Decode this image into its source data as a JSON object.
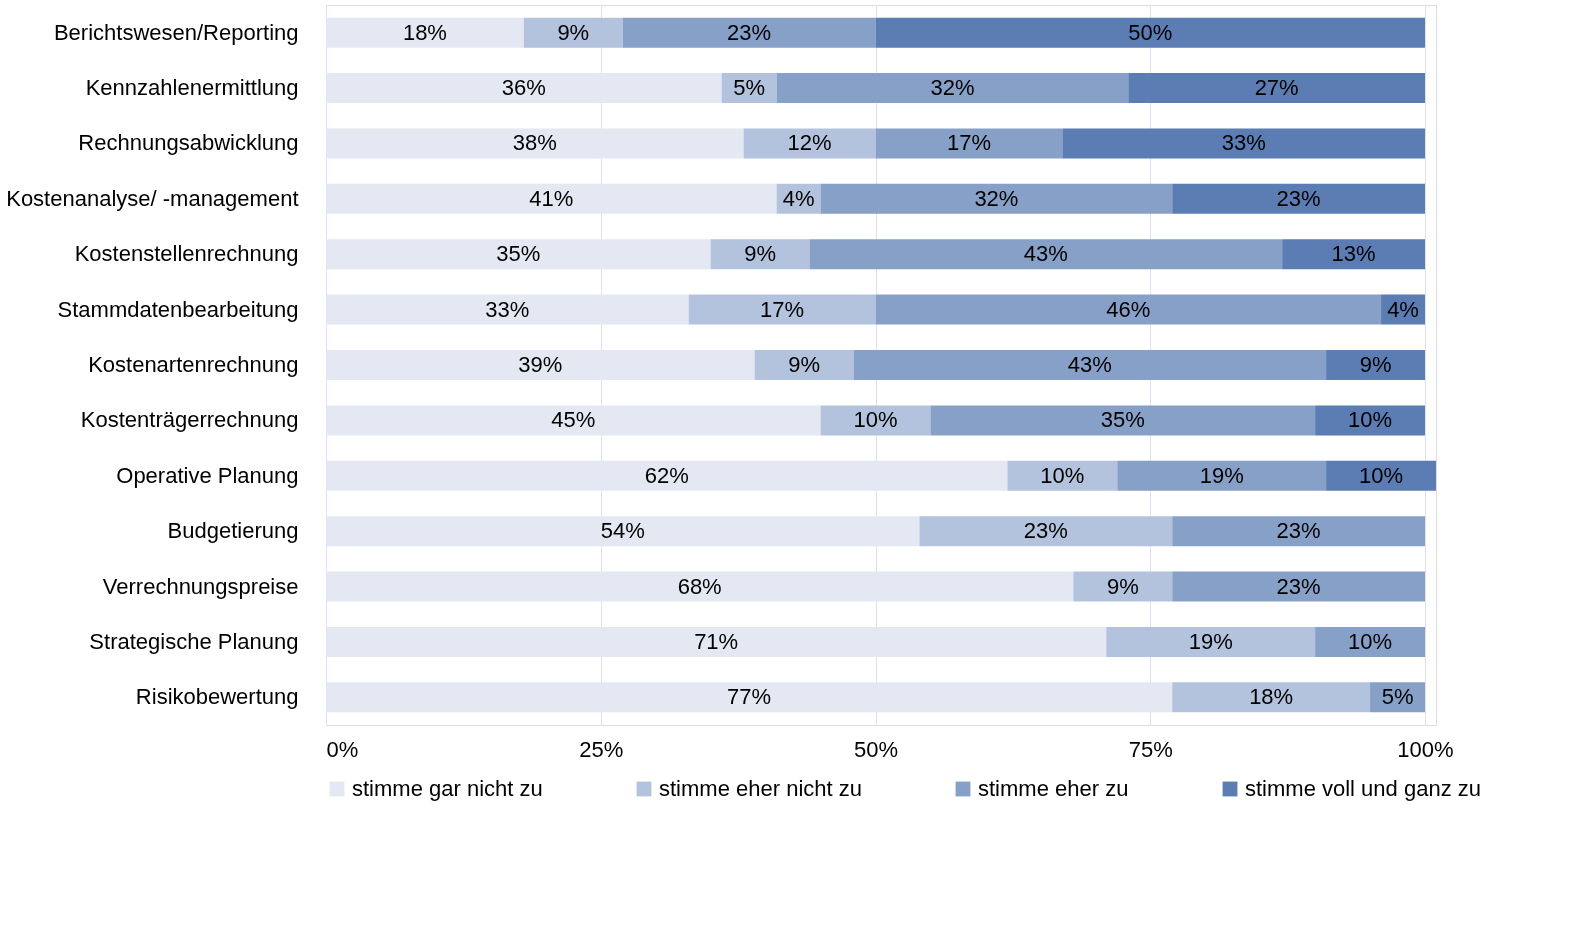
{
  "chart_data": {
    "type": "bar",
    "orientation": "horizontal",
    "stacked": true,
    "categories": [
      "Berichtswesen/Reporting",
      "Kennzahlenermittlung",
      "Rechnungsabwicklung",
      "Kostenanalyse/ -management",
      "Kostenstellenrechnung",
      "Stammdatenbearbeitung",
      "Kostenartenrechnung",
      "Kostenträgerrechnung",
      "Operative Planung",
      "Budgetierung",
      "Verrechnungspreise",
      "Strategische Planung",
      "Risikobewertung"
    ],
    "series": [
      {
        "name": "stimme gar nicht zu",
        "color": "#e4e8f2",
        "values": [
          18,
          36,
          38,
          41,
          35,
          33,
          39,
          45,
          62,
          54,
          68,
          71,
          77
        ],
        "value_labels": [
          "18%",
          "36%",
          "38%",
          "41%",
          "35%",
          "33%",
          "39%",
          "45%",
          "62%",
          "54%",
          "68%",
          "71%",
          "77%"
        ]
      },
      {
        "name": "stimme eher nicht zu",
        "color": "#b3c2dd",
        "values": [
          9,
          5,
          12,
          4,
          9,
          17,
          9,
          10,
          10,
          23,
          9,
          19,
          18
        ],
        "value_labels": [
          "9%",
          "5%",
          "12%",
          "4%",
          "9%",
          "17%",
          "9%",
          "10%",
          "10%",
          "23%",
          "9%",
          "19%",
          "18%"
        ]
      },
      {
        "name": "stimme eher zu",
        "color": "#87a0c8",
        "values": [
          23,
          32,
          17,
          32,
          43,
          46,
          43,
          35,
          19,
          23,
          23,
          10,
          5
        ],
        "value_labels": [
          "23%",
          "32%",
          "17%",
          "32%",
          "43%",
          "46%",
          "43%",
          "35%",
          "19%",
          "23%",
          "23%",
          "10%",
          "5%"
        ]
      },
      {
        "name": "stimme voll und ganz zu",
        "color": "#5b7db3",
        "values": [
          50,
          27,
          33,
          23,
          13,
          4,
          9,
          10,
          10,
          null,
          null,
          null,
          null
        ],
        "value_labels": [
          "50%",
          "27%",
          "33%",
          "23%",
          "13%",
          "4%",
          "9%",
          "10%",
          "10%",
          null,
          null,
          null,
          null
        ]
      }
    ],
    "xlim": [
      0,
      101
    ],
    "xticks": [
      {
        "value": 0,
        "label": "0%"
      },
      {
        "value": 25,
        "label": "25%"
      },
      {
        "value": 50,
        "label": "50%"
      },
      {
        "value": 75,
        "label": "75%"
      },
      {
        "value": 100,
        "label": "100%"
      }
    ],
    "grid": "x",
    "legend": "bottom"
  }
}
